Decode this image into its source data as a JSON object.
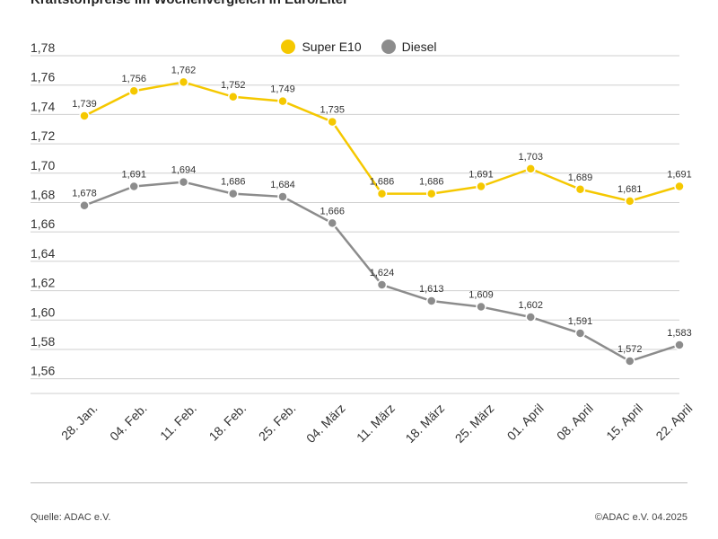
{
  "header": {
    "title": "Kraftstoffpreise im Wochenvergleich in Euro/Liter"
  },
  "footer": {
    "source": "Quelle: ADAC e.V.",
    "copyright": "©ADAC e.V. 04.2025"
  },
  "chart_data": {
    "type": "line",
    "title": "Kraftstoffpreise im Wochenvergleich in Euro/Liter",
    "xlabel": "",
    "ylabel": "",
    "categories": [
      "28. Jan.",
      "04. Feb.",
      "11. Feb.",
      "18. Feb.",
      "25. Feb.",
      "04. März",
      "11. März",
      "18. März",
      "25. März",
      "01. April",
      "08. April",
      "15. April",
      "22. April"
    ],
    "ylim": [
      1.55,
      1.78
    ],
    "yticks": [
      1.56,
      1.58,
      1.6,
      1.62,
      1.64,
      1.66,
      1.68,
      1.7,
      1.72,
      1.74,
      1.76,
      1.78
    ],
    "ytick_labels": [
      "1,56",
      "1,58",
      "1,60",
      "1,62",
      "1,64",
      "1,66",
      "1,68",
      "1,70",
      "1,72",
      "1,74",
      "1,76",
      "1,78"
    ],
    "grid": true,
    "legend": "top-center",
    "series": [
      {
        "name": "Super E10",
        "color": "#f5c800",
        "values": [
          1.739,
          1.756,
          1.762,
          1.752,
          1.749,
          1.735,
          1.686,
          1.686,
          1.691,
          1.703,
          1.689,
          1.681,
          1.691
        ],
        "labels": [
          "1,739",
          "1,756",
          "1,762",
          "1,752",
          "1,749",
          "1,735",
          "1,686",
          "1,686",
          "1,691",
          "1,703",
          "1,689",
          "1,681",
          "1,691"
        ]
      },
      {
        "name": "Diesel",
        "color": "#8c8c8c",
        "values": [
          1.678,
          1.691,
          1.694,
          1.686,
          1.684,
          1.666,
          1.624,
          1.613,
          1.609,
          1.602,
          1.591,
          1.572,
          1.583
        ],
        "labels": [
          "1,678",
          "1,691",
          "1,694",
          "1,686",
          "1,684",
          "1,666",
          "1,624",
          "1,613",
          "1,609",
          "1,602",
          "1,591",
          "1,572",
          "1,583"
        ]
      }
    ]
  }
}
